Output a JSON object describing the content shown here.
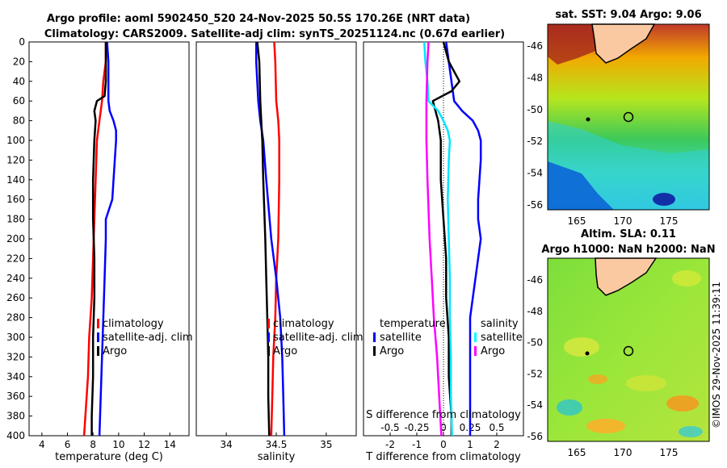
{
  "titles": {
    "line1": "Argo profile: aoml 5902450_520 24-Nov-2025 50.5S 170.26E (NRT data)",
    "line2": "Climatology: CARS2009. Satellite-adj clim: synTS_20251124.nc (0.67d earlier)",
    "sst": "sat. SST: 9.04 Argo: 9.06",
    "sla1": "Altim. SLA: 0.11",
    "sla2": "Argo h1000: NaN h2000: NaN",
    "credit": "©IMOS 29-Nov-2025 11:39:11"
  },
  "colors": {
    "climatology": "#ff0000",
    "satellite": "#0000ff",
    "argo": "#000000",
    "sat_s": "#00ffff",
    "clim_s": "#ff00ff",
    "land": "#fbc9a1"
  },
  "depth_ticks": [
    "0",
    "20",
    "40",
    "60",
    "80",
    "100",
    "120",
    "140",
    "160",
    "180",
    "200",
    "220",
    "240",
    "260",
    "280",
    "300",
    "320",
    "340",
    "360",
    "380",
    "400"
  ],
  "chart_data": [
    {
      "type": "line",
      "title": "",
      "xlabel": "temperature (deg C)",
      "ylabel": "",
      "xlim": [
        3,
        15.5
      ],
      "ylim": [
        400,
        0
      ],
      "xticks": [
        "4",
        "6",
        "8",
        "10",
        "12",
        "14"
      ],
      "xtick_values": [
        4,
        6,
        8,
        10,
        12,
        14
      ],
      "legend": [
        "climatology",
        "satellite-adj. clim",
        "Argo"
      ],
      "series": [
        {
          "name": "climatology",
          "color": "red",
          "depth": [
            0,
            20,
            40,
            60,
            80,
            100,
            140,
            180,
            220,
            260,
            300,
            340,
            380,
            400
          ],
          "values": [
            9.0,
            9.0,
            8.8,
            8.7,
            8.5,
            8.3,
            8.2,
            8.1,
            8.0,
            7.9,
            7.7,
            7.6,
            7.4,
            7.3
          ]
        },
        {
          "name": "satellite-adj. clim",
          "color": "blue",
          "depth": [
            0,
            20,
            40,
            60,
            70,
            80,
            90,
            100,
            120,
            160,
            180,
            200,
            240,
            280,
            320,
            360,
            400
          ],
          "values": [
            9.1,
            9.2,
            9.2,
            9.2,
            9.3,
            9.6,
            9.8,
            9.8,
            9.7,
            9.5,
            9.0,
            9.0,
            8.9,
            8.8,
            8.7,
            8.6,
            8.5
          ]
        },
        {
          "name": "Argo",
          "color": "black",
          "depth": [
            0,
            20,
            40,
            55,
            60,
            70,
            80,
            100,
            140,
            180,
            220,
            260,
            300,
            340,
            380,
            400
          ],
          "values": [
            9.0,
            9.0,
            9.0,
            8.9,
            8.3,
            8.1,
            8.2,
            8.1,
            8.0,
            8.0,
            8.1,
            8.1,
            8.0,
            8.0,
            7.9,
            7.9
          ]
        }
      ]
    },
    {
      "type": "line",
      "title": "",
      "xlabel": "salinity",
      "ylabel": "",
      "xlim": [
        33.7,
        35.3
      ],
      "ylim": [
        400,
        0
      ],
      "xticks": [
        "34",
        "34.5",
        "35"
      ],
      "xtick_values": [
        34,
        34.5,
        35
      ],
      "legend": [
        "climatology",
        "satellite-adj. clim",
        "Argo"
      ],
      "series": [
        {
          "name": "climatology",
          "color": "red",
          "depth": [
            0,
            20,
            60,
            80,
            100,
            140,
            200,
            240,
            280,
            320,
            360,
            400
          ],
          "values": [
            34.48,
            34.49,
            34.5,
            34.52,
            34.53,
            34.53,
            34.52,
            34.5,
            34.49,
            34.47,
            34.46,
            34.45
          ]
        },
        {
          "name": "satellite-adj. clim",
          "color": "blue",
          "depth": [
            0,
            20,
            60,
            80,
            100,
            140,
            200,
            240,
            280,
            320,
            360,
            400
          ],
          "values": [
            34.3,
            34.3,
            34.32,
            34.34,
            34.37,
            34.4,
            34.45,
            34.5,
            34.54,
            34.56,
            34.57,
            34.58
          ]
        },
        {
          "name": "Argo",
          "color": "black",
          "depth": [
            0,
            20,
            60,
            80,
            100,
            140,
            200,
            240,
            280,
            320,
            360,
            400
          ],
          "values": [
            34.31,
            34.33,
            34.34,
            34.35,
            34.36,
            34.37,
            34.39,
            34.4,
            34.41,
            34.42,
            34.42,
            34.43
          ]
        }
      ]
    },
    {
      "type": "line",
      "title": "",
      "xlabel": "T difference from climatology",
      "xlabel_top": "S difference from climatology",
      "ylabel": "",
      "xlim": [
        -3,
        3
      ],
      "ylim": [
        400,
        0
      ],
      "xticks": [
        "-2",
        "-1",
        "0",
        "1",
        "2"
      ],
      "xtick_values": [
        -2,
        -1,
        0,
        1,
        2
      ],
      "s_ticks": [
        "-0.5",
        "-0.25",
        "0",
        "0.25",
        "0.5"
      ],
      "legend_t_title": "temperature",
      "legend_s_title": "salinity",
      "legend_t": [
        "satellite",
        "Argo"
      ],
      "legend_s": [
        "satellite",
        "Argo"
      ],
      "series": [
        {
          "name": "T satellite",
          "color": "blue",
          "depth": [
            0,
            20,
            40,
            60,
            70,
            80,
            90,
            100,
            120,
            160,
            180,
            200,
            240,
            280,
            320,
            360,
            400
          ],
          "values": [
            0.1,
            0.2,
            0.3,
            0.4,
            0.7,
            1.1,
            1.3,
            1.4,
            1.4,
            1.3,
            1.3,
            1.4,
            1.2,
            1.0,
            1.0,
            1.0,
            1.0
          ]
        },
        {
          "name": "T Argo",
          "color": "black",
          "depth": [
            0,
            20,
            30,
            40,
            50,
            60,
            70,
            80,
            100,
            140,
            180,
            220,
            260,
            300,
            340,
            380,
            400
          ],
          "values": [
            0.0,
            0.2,
            0.4,
            0.6,
            0.3,
            -0.4,
            -0.3,
            -0.2,
            -0.1,
            -0.1,
            0.0,
            0.1,
            0.1,
            0.2,
            0.2,
            0.3,
            0.3
          ]
        },
        {
          "name": "S satellite",
          "color": "cyan",
          "depth": [
            0,
            20,
            40,
            60,
            70,
            80,
            90,
            100,
            120,
            160,
            200,
            240,
            280,
            320,
            360,
            400
          ],
          "values": [
            -0.18,
            -0.17,
            -0.15,
            -0.14,
            -0.05,
            0.0,
            0.04,
            0.06,
            0.05,
            0.04,
            0.05,
            0.06,
            0.06,
            0.07,
            0.07,
            0.08
          ]
        },
        {
          "name": "S Argo",
          "color": "magenta",
          "depth": [
            0,
            20,
            60,
            80,
            100,
            140,
            200,
            240,
            280,
            320,
            360,
            400
          ],
          "values": [
            -0.14,
            -0.15,
            -0.16,
            -0.16,
            -0.16,
            -0.15,
            -0.13,
            -0.11,
            -0.09,
            -0.06,
            -0.04,
            -0.02
          ]
        }
      ]
    }
  ],
  "sst_map": {
    "title": "sat. SST: 9.04 Argo: 9.06",
    "lon_ticks": [
      "165",
      "170",
      "175"
    ],
    "lat_ticks": [
      "-46",
      "-48",
      "-50",
      "-52",
      "-54",
      "-56"
    ]
  },
  "sla_map": {
    "title1": "Altim. SLA: 0.11",
    "title2": "Argo h1000: NaN h2000: NaN",
    "lon_ticks": [
      "165",
      "170",
      "175"
    ],
    "lat_ticks": [
      "-46",
      "-48",
      "-50",
      "-52",
      "-54",
      "-56"
    ]
  }
}
